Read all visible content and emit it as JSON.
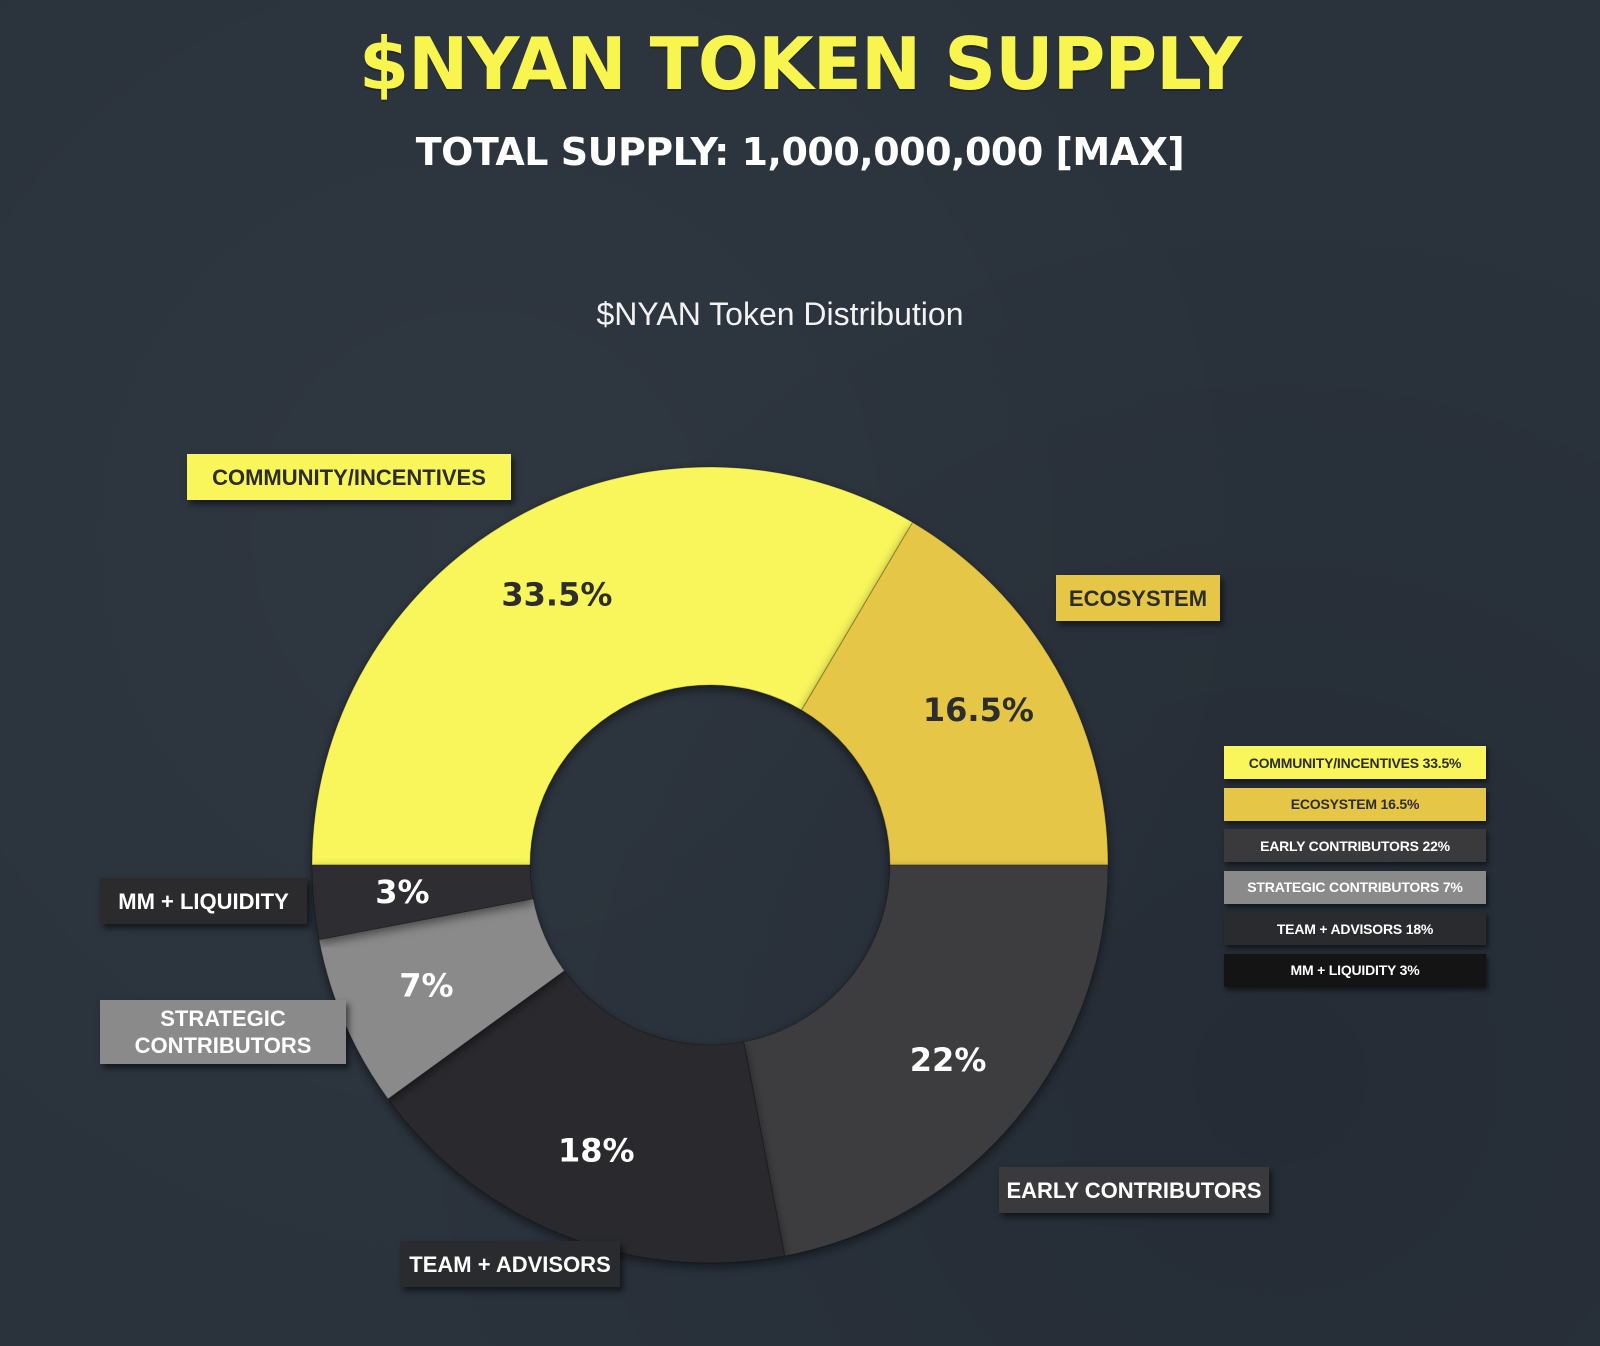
{
  "header": {
    "title": "$NYAN TOKEN SUPPLY",
    "subtitle": "TOTAL SUPPLY: 1,000,000,000 [MAX]"
  },
  "chart_data": {
    "type": "pie",
    "title": "$NYAN Token Distribution",
    "donut": true,
    "start": "left, clockwise",
    "slices": [
      {
        "label": "COMMUNITY/INCENTIVES",
        "value": 33.5,
        "display": "33.5%",
        "color": "#f8f65a",
        "text_color": "#2d2d2d",
        "legend": "COMMUNITY/INCENTIVES 33.5%"
      },
      {
        "label": "ECOSYSTEM",
        "value": 16.5,
        "display": "16.5%",
        "color": "#e5c646",
        "text_color": "#2d2d2d",
        "legend": "ECOSYSTEM 16.5%"
      },
      {
        "label": "EARLY CONTRIBUTORS",
        "value": 22,
        "display": "22%",
        "color": "#3d3d3f",
        "text_color": "#ffffff",
        "legend": "EARLY CONTRIBUTORS 22%"
      },
      {
        "label": "TEAM + ADVISORS",
        "value": 18,
        "display": "18%",
        "color": "#2a2b2f",
        "text_color": "#ffffff",
        "legend": "TEAM + ADVISORS 18%"
      },
      {
        "label": "STRATEGIC CONTRIBUTORS",
        "value": 7,
        "display": "7%",
        "color": "#8a8a8a",
        "text_color": "#ffffff",
        "legend": "STRATEGIC CONTRIBUTORS 7%"
      },
      {
        "label": "MM + LIQUIDITY",
        "value": 3,
        "display": "3%",
        "color": "#2f2f31",
        "text_color": "#ffffff",
        "legend": "MM + LIQUIDITY 3%"
      }
    ],
    "legend_placement": "right"
  },
  "callouts": {
    "community": "COMMUNITY/INCENTIVES",
    "ecosystem": "ECOSYSTEM",
    "early": "EARLY CONTRIBUTORS",
    "team": "TEAM + ADVISORS",
    "strategic": "STRATEGIC CONTRIBUTORS",
    "mm": "MM + LIQUIDITY"
  },
  "legend_colors": [
    "#f8f65a",
    "#e5c646",
    "#3a3a3c",
    "#8a8a8a",
    "#2a2b2f",
    "#141414"
  ]
}
